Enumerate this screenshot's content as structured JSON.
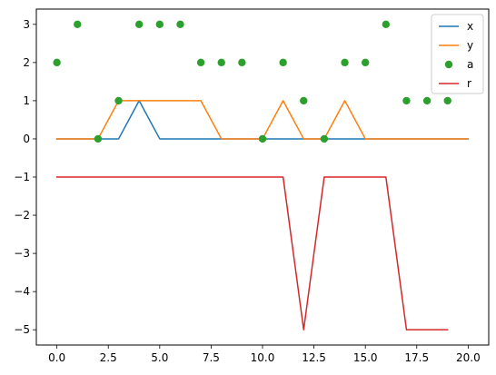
{
  "chart_data": {
    "type": "line",
    "title": "",
    "xlabel": "",
    "ylabel": "",
    "xlim": [
      -1.0,
      21.0
    ],
    "ylim": [
      -5.4,
      3.4
    ],
    "xticks": [
      0.0,
      2.5,
      5.0,
      7.5,
      10.0,
      12.5,
      15.0,
      17.5,
      20.0
    ],
    "xtick_labels": [
      "0.0",
      "2.5",
      "5.0",
      "7.5",
      "10.0",
      "12.5",
      "15.0",
      "17.5",
      "20.0"
    ],
    "yticks": [
      -5,
      -4,
      -3,
      -2,
      -1,
      0,
      1,
      2,
      3
    ],
    "ytick_labels": [
      "−5",
      "−4",
      "−3",
      "−2",
      "−1",
      "0",
      "1",
      "2",
      "3"
    ],
    "grid": false,
    "legend_position": "top-right",
    "series": [
      {
        "name": "x",
        "kind": "line",
        "color": "#1f77b4",
        "x": [
          0,
          1,
          2,
          3,
          4,
          5,
          6,
          7,
          8,
          9,
          10,
          11,
          12,
          13,
          14,
          15,
          16,
          17,
          18,
          19,
          20
        ],
        "y": [
          0,
          0,
          0,
          0,
          1,
          0,
          0,
          0,
          0,
          0,
          0,
          0,
          0,
          0,
          0,
          0,
          0,
          0,
          0,
          0,
          0
        ]
      },
      {
        "name": "y",
        "kind": "line",
        "color": "#ff7f0e",
        "x": [
          0,
          1,
          2,
          3,
          4,
          5,
          6,
          7,
          8,
          9,
          10,
          11,
          12,
          13,
          14,
          15,
          16,
          17,
          18,
          19,
          20
        ],
        "y": [
          0,
          0,
          0,
          1,
          1,
          1,
          1,
          1,
          0,
          0,
          0,
          1,
          0,
          0,
          1,
          0,
          0,
          0,
          0,
          0,
          0
        ]
      },
      {
        "name": "a",
        "kind": "scatter",
        "color": "#2ca02c",
        "x": [
          0,
          1,
          2,
          3,
          4,
          5,
          6,
          7,
          8,
          9,
          10,
          11,
          12,
          13,
          14,
          15,
          16,
          17,
          18,
          19
        ],
        "y": [
          2,
          3,
          0,
          1,
          3,
          3,
          3,
          2,
          2,
          2,
          0,
          2,
          1,
          0,
          2,
          2,
          3,
          1,
          1,
          1
        ]
      },
      {
        "name": "r",
        "kind": "line",
        "color": "#d62728",
        "x": [
          0,
          1,
          2,
          3,
          4,
          5,
          6,
          7,
          8,
          9,
          10,
          11,
          12,
          13,
          14,
          15,
          16,
          17,
          18,
          19
        ],
        "y": [
          -1,
          -1,
          -1,
          -1,
          -1,
          -1,
          -1,
          -1,
          -1,
          -1,
          -1,
          -1,
          -5,
          -1,
          -1,
          -1,
          -1,
          -5,
          -5,
          -5
        ]
      }
    ]
  }
}
